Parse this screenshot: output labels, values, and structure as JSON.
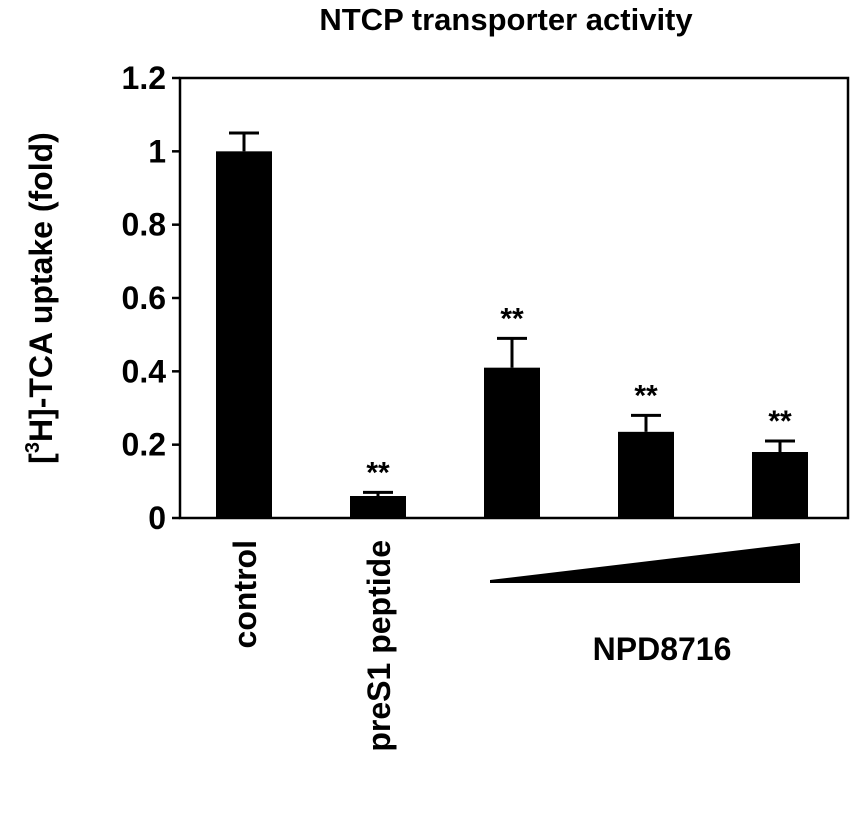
{
  "chart_data": {
    "type": "bar",
    "title": "NTCP transporter activity",
    "ylabel_prefix": "[",
    "ylabel_sup": "3",
    "ylabel_suffix": "H]-TCA uptake (fold)",
    "ylim": [
      0,
      1.2
    ],
    "yticks": [
      "0",
      "0.2",
      "0.4",
      "0.6",
      "0.8",
      "1",
      "1.2"
    ],
    "categories": [
      "control",
      "preS1 peptide",
      "",
      "",
      ""
    ],
    "values": [
      1.0,
      0.06,
      0.41,
      0.235,
      0.18
    ],
    "errors": [
      0.05,
      0.01,
      0.08,
      0.045,
      0.03
    ],
    "annotations": [
      "",
      "**",
      "**",
      "**",
      "**"
    ],
    "group_label": "NPD8716",
    "group_indicator": "increasing-wedge",
    "bar_color": "#000000",
    "grid": false
  }
}
